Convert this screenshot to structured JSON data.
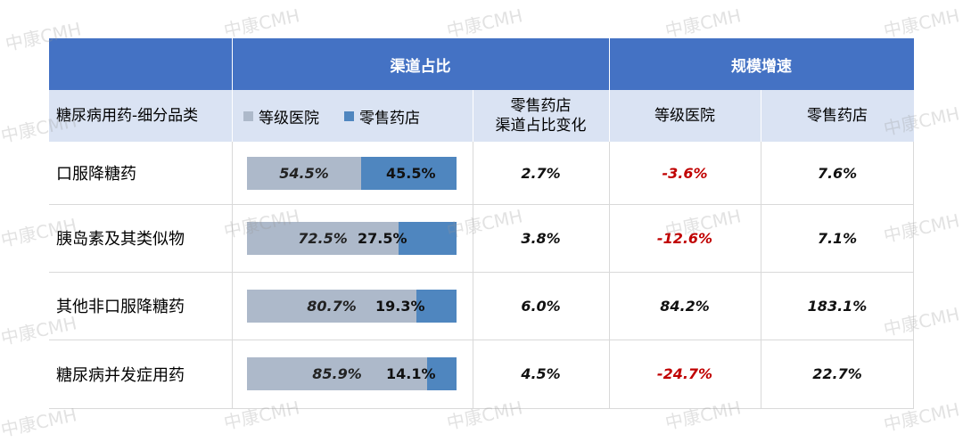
{
  "watermark": "中康CMH",
  "header": {
    "group_share": "渠道占比",
    "group_growth": "规模增速",
    "category_col": "糖尿病用药-细分品类",
    "share_change_col": "零售药店\n渠道占比变化",
    "growth_hospital_col": "等级医院",
    "growth_retail_col": "零售药店"
  },
  "legend": {
    "hospital": "等级医院",
    "retail": "零售药店"
  },
  "colors": {
    "header_bg": "#4472c4",
    "subheader_bg": "#dae3f3",
    "hospital_bar": "#adb9ca",
    "retail_bar": "#4f86bf",
    "negative": "#c00000"
  },
  "rows": [
    {
      "category": "口服降糖药",
      "hospital_label": "54.5%",
      "retail_label": "45.5%",
      "share_change": "2.7%",
      "growth_hospital": "-3.6%",
      "growth_retail": "7.6%"
    },
    {
      "category": "胰岛素及其类似物",
      "hospital_label": "72.5%",
      "retail_label": "27.5%",
      "share_change": "3.8%",
      "growth_hospital": "-12.6%",
      "growth_retail": "7.1%"
    },
    {
      "category": "其他非口服降糖药",
      "hospital_label": "80.7%",
      "retail_label": "19.3%",
      "share_change": "6.0%",
      "growth_hospital": "84.2%",
      "growth_retail": "183.1%"
    },
    {
      "category": "糖尿病并发症用药",
      "hospital_label": "85.9%",
      "retail_label": "14.1%",
      "share_change": "4.5%",
      "growth_hospital": "-24.7%",
      "growth_retail": "22.7%"
    }
  ],
  "chart_data": {
    "type": "bar",
    "categories": [
      "口服降糖药",
      "胰岛素及其类似物",
      "其他非口服降糖药",
      "糖尿病并发症用药"
    ],
    "series": [
      {
        "name": "等级医院",
        "values": [
          54.5,
          72.5,
          80.7,
          85.9
        ]
      },
      {
        "name": "零售药店",
        "values": [
          45.5,
          27.5,
          19.3,
          14.1
        ]
      }
    ],
    "stacked": true,
    "orientation": "horizontal",
    "ylim": [
      0,
      100
    ]
  }
}
